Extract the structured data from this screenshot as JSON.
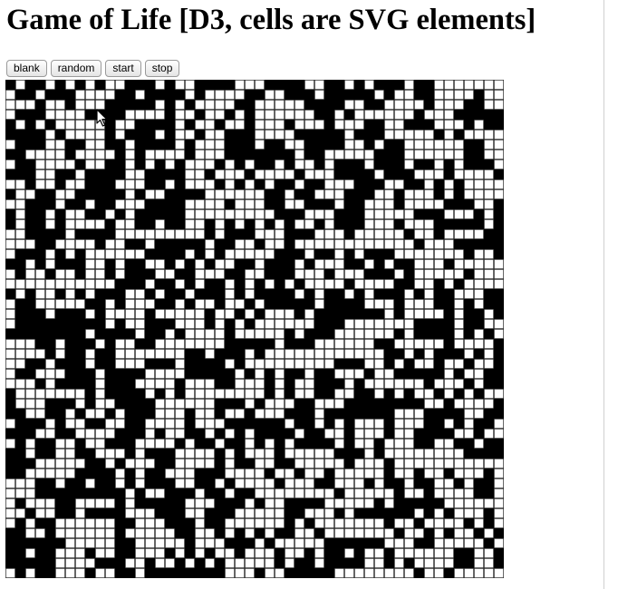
{
  "page": {
    "title": "Game of Life [D3, cells are SVG elements]"
  },
  "toolbar": {
    "blank_label": "blank",
    "random_label": "random",
    "start_label": "start",
    "stop_label": "stop"
  },
  "board": {
    "rows": 50,
    "cols": 50,
    "colors": {
      "dead": "#000000",
      "alive": "#ffffff",
      "grid_line": "#555555"
    }
  },
  "icons": {
    "cursor": "arrow-cursor-icon"
  }
}
